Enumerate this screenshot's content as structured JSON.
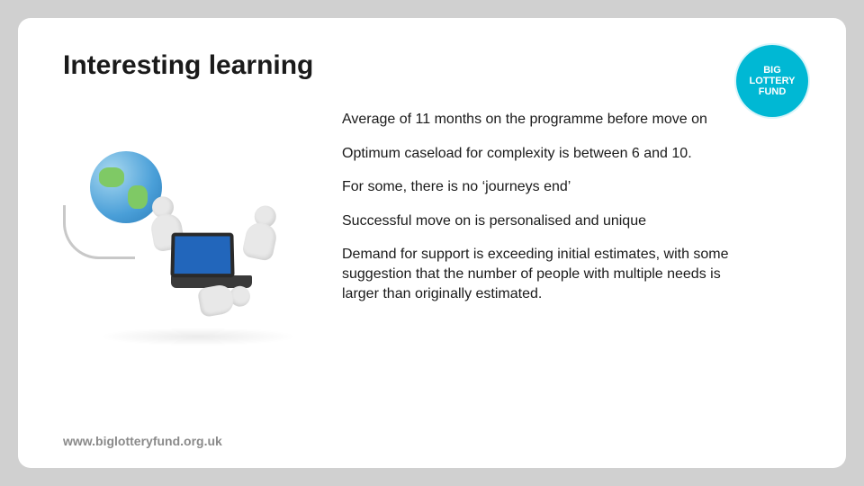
{
  "slide": {
    "title": "Interesting learning",
    "logo": {
      "line1": "BIG",
      "line2": "LOTTERY",
      "line3": "FUND",
      "bg_color": "#00b8d4",
      "text_color": "#ffffff"
    },
    "bullets": [
      "Average of 11 months on the programme before move on",
      "Optimum caseload for complexity is between 6 and 10.",
      "For some, there is no ‘journeys end’",
      "Successful move on is personalised and unique",
      "Demand for support is exceeding initial estimates, with some suggestion that the number of people with multiple needs is larger than originally estimated."
    ],
    "footer_url": "www.biglotteryfund.org.uk",
    "footer_color": "#8a8a8a",
    "illustration": {
      "globe_colors": [
        "#a8d8f0",
        "#4a9fd8",
        "#2a7bb8"
      ],
      "land_color": "#7fc965",
      "figure_color": "#e8e8e8",
      "laptop_screen_color": "#2266bb",
      "laptop_frame_color": "#2a2a2a",
      "cable_color": "#c8c8c8"
    },
    "background_color": "#ffffff",
    "outer_background": "#d0d0d0",
    "title_fontsize": 30,
    "body_fontsize": 16
  }
}
